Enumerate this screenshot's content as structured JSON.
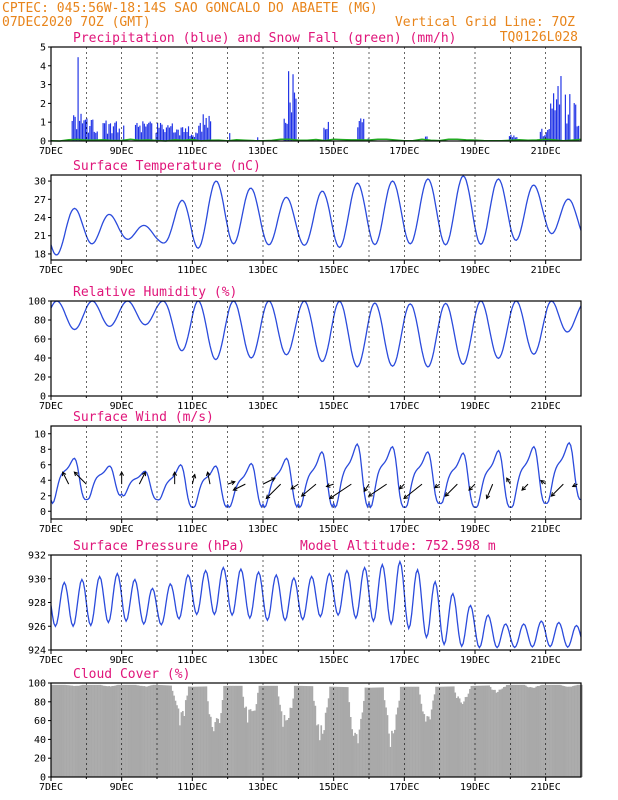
{
  "header": {
    "line1_left": "CPTEC:   045:56W-18:14S  SAO GONCALO DO ABAETE (MG)",
    "line2_left": "07DEC2020 7OZ (GMT)",
    "line2_right": "Vertical Grid Line: 7OZ",
    "line3_right": "TQ0126L028"
  },
  "colors": {
    "header": "#e8841a",
    "title": "#e0157a",
    "precip": "#1f32e6",
    "snow": "#22aa22",
    "line": "#2b4bdc",
    "cloud": "#a9a9a9",
    "arrow": "#000000"
  },
  "x_labels": [
    "7DEC",
    "9DEC",
    "11DEC",
    "13DEC",
    "15DEC",
    "17DEC",
    "19DEC",
    "21DEC"
  ],
  "x_range_days": [
    0,
    15
  ],
  "chart_data": [
    {
      "id": "precip",
      "type": "bar",
      "title": "Precipitation (blue) and Snow Fall (green) (mm/h)",
      "ylim": [
        0,
        5
      ],
      "yticks": [
        0,
        1,
        2,
        3,
        4,
        5
      ],
      "events": [
        {
          "c": 0.8,
          "w": 0.45,
          "p": 1.5
        },
        {
          "c": 0.75,
          "w": 0.06,
          "p": 4.6
        },
        {
          "c": 1.1,
          "w": 0.4,
          "p": 1.2
        },
        {
          "c": 1.7,
          "w": 0.5,
          "p": 1.1
        },
        {
          "c": 2.05,
          "w": 0.06,
          "p": 1.6
        },
        {
          "c": 2.6,
          "w": 0.5,
          "p": 1.1
        },
        {
          "c": 3.2,
          "w": 0.5,
          "p": 1.0
        },
        {
          "c": 3.65,
          "w": 0.5,
          "p": 0.8
        },
        {
          "c": 4.0,
          "w": 0.3,
          "p": 0.6
        },
        {
          "c": 4.4,
          "w": 0.25,
          "p": 1.6
        },
        {
          "c": 4.3,
          "w": 0.3,
          "p": 1.1
        },
        {
          "c": 5.05,
          "w": 0.04,
          "p": 0.5
        },
        {
          "c": 5.85,
          "w": 0.05,
          "p": 0.3
        },
        {
          "c": 6.7,
          "w": 0.3,
          "p": 2.0
        },
        {
          "c": 6.8,
          "w": 0.25,
          "p": 3.8
        },
        {
          "c": 7.75,
          "w": 0.15,
          "p": 1.0
        },
        {
          "c": 7.8,
          "w": 0.1,
          "p": 1.4
        },
        {
          "c": 8.75,
          "w": 0.2,
          "p": 1.3
        },
        {
          "c": 8.95,
          "w": 0.06,
          "p": 0.2
        },
        {
          "c": 10.6,
          "w": 0.06,
          "p": 0.3
        },
        {
          "c": 12.0,
          "w": 0.03,
          "p": 0.1
        },
        {
          "c": 13.05,
          "w": 0.25,
          "p": 0.4
        },
        {
          "c": 14.0,
          "w": 0.4,
          "p": 0.7
        },
        {
          "c": 14.2,
          "w": 0.2,
          "p": 2.6
        },
        {
          "c": 14.35,
          "w": 0.2,
          "p": 3.6
        },
        {
          "c": 14.6,
          "w": 0.15,
          "p": 2.5
        },
        {
          "c": 14.85,
          "w": 0.15,
          "p": 2.2
        }
      ],
      "snow_max": 0.1
    },
    {
      "id": "temp",
      "type": "line",
      "title": "Surface Temperature (nC)",
      "ylim": [
        17,
        31
      ],
      "yticks": [
        18,
        21,
        24,
        27,
        30
      ],
      "daily_min": [
        17.5,
        19.5,
        20.5,
        20.0,
        18.8,
        19.7,
        19.5,
        19.5,
        19.0,
        19.5,
        19.7,
        19.5,
        19.5,
        20.0,
        21.5,
        20.5
      ],
      "daily_max": [
        25.5,
        25.5,
        24.0,
        22.0,
        29.0,
        30.5,
        28.0,
        27.0,
        29.0,
        30.0,
        30.0,
        30.5,
        31.0,
        30.0,
        29.0,
        26.0
      ]
    },
    {
      "id": "rh",
      "type": "line",
      "title": "Relative Humidity (%)",
      "ylim": [
        0,
        100
      ],
      "yticks": [
        0,
        20,
        40,
        60,
        80,
        100
      ],
      "daily_max": [
        100,
        100,
        100,
        100,
        100,
        100,
        100,
        100,
        100,
        98,
        97,
        97,
        100,
        100,
        100,
        100
      ],
      "daily_min": [
        70,
        70,
        75,
        75,
        35,
        40,
        40,
        45,
        32,
        30,
        32,
        30,
        35,
        42,
        45,
        80
      ]
    },
    {
      "id": "wind",
      "type": "line",
      "title": "Surface Wind (m/s)",
      "ylim": [
        -1,
        11
      ],
      "yticks": [
        0,
        2,
        4,
        6,
        8,
        10
      ],
      "daily_max": [
        7.5,
        6.5,
        5.5,
        5.0,
        6.5,
        5.5,
        6.5,
        7.0,
        8.0,
        9.0,
        8.0,
        7.5,
        7.5,
        8.0,
        8.5,
        9.0
      ],
      "daily_min": [
        1.0,
        1.5,
        2.0,
        1.5,
        0.5,
        0.5,
        0.5,
        0.5,
        0.5,
        0.5,
        0.5,
        1.0,
        0.5,
        0.5,
        1.0,
        1.5
      ],
      "arrows": [
        {
          "d": 0.5,
          "dx": -0.5,
          "dy": 1.0
        },
        {
          "d": 1.0,
          "dx": -1.0,
          "dy": 1.0
        },
        {
          "d": 2.0,
          "dx": 0.0,
          "dy": 1.0
        },
        {
          "d": 2.5,
          "dx": 0.5,
          "dy": 1.0
        },
        {
          "d": 3.5,
          "dx": 0.0,
          "dy": 1.0
        },
        {
          "d": 4.0,
          "dx": 0.2,
          "dy": 0.8
        },
        {
          "d": 4.5,
          "dx": -0.2,
          "dy": 1.0
        },
        {
          "d": 5.0,
          "dx": 0.6,
          "dy": 0.2
        },
        {
          "d": 5.5,
          "dx": -1.0,
          "dy": -0.5
        },
        {
          "d": 6.0,
          "dx": 1.0,
          "dy": 0.5
        },
        {
          "d": 6.5,
          "dx": -1.2,
          "dy": -1.2
        },
        {
          "d": 7.0,
          "dx": -0.6,
          "dy": -0.4
        },
        {
          "d": 7.5,
          "dx": -1.2,
          "dy": -1.0
        },
        {
          "d": 8.0,
          "dx": -0.6,
          "dy": -0.2
        },
        {
          "d": 8.5,
          "dx": -1.8,
          "dy": -1.2
        },
        {
          "d": 9.0,
          "dx": -0.4,
          "dy": -0.6
        },
        {
          "d": 9.5,
          "dx": -1.5,
          "dy": -1.0
        },
        {
          "d": 10.0,
          "dx": -0.4,
          "dy": -0.4
        },
        {
          "d": 10.5,
          "dx": -1.5,
          "dy": -1.2
        },
        {
          "d": 11.0,
          "dx": -0.4,
          "dy": -0.3
        },
        {
          "d": 11.5,
          "dx": -1.0,
          "dy": -1.0
        },
        {
          "d": 12.0,
          "dx": -0.5,
          "dy": -0.5
        },
        {
          "d": 12.5,
          "dx": -0.5,
          "dy": -1.2
        },
        {
          "d": 13.0,
          "dx": -0.3,
          "dy": 0.5
        },
        {
          "d": 13.5,
          "dx": -0.5,
          "dy": -0.5
        },
        {
          "d": 14.0,
          "dx": -0.4,
          "dy": 0.3
        },
        {
          "d": 14.5,
          "dx": -1.0,
          "dy": -1.0
        },
        {
          "d": 14.9,
          "dx": -0.4,
          "dy": -0.2
        }
      ]
    },
    {
      "id": "pres",
      "type": "line",
      "title": "Surface Pressure (hPa)",
      "annotation": "Model Altitude: 752.598 m",
      "ylim": [
        924,
        932
      ],
      "yticks": [
        924,
        926,
        928,
        930,
        932
      ],
      "daily_max": [
        929.5,
        930.0,
        930.5,
        929.0,
        930.5,
        931.0,
        930.5,
        930.0,
        930.5,
        931.0,
        931.5,
        929.5,
        927.5,
        926.0,
        926.5,
        926.0
      ],
      "daily_min": [
        926.0,
        926.0,
        926.5,
        926.0,
        927.0,
        927.0,
        926.5,
        926.5,
        927.0,
        926.5,
        926.0,
        924.5,
        924.2,
        924.2,
        924.3,
        924.2
      ]
    },
    {
      "id": "cloud",
      "type": "area",
      "title": "Cloud Cover (%)",
      "ylim": [
        0,
        100
      ],
      "yticks": [
        0,
        20,
        40,
        60,
        80,
        100
      ],
      "daily_low": [
        98,
        96,
        96,
        96,
        30,
        40,
        60,
        30,
        40,
        10,
        35,
        60,
        85,
        92,
        96,
        95
      ],
      "daily_high": [
        98,
        98,
        98,
        98,
        96,
        97,
        97,
        97,
        96,
        95,
        96,
        96,
        97,
        98,
        98,
        98
      ]
    }
  ]
}
